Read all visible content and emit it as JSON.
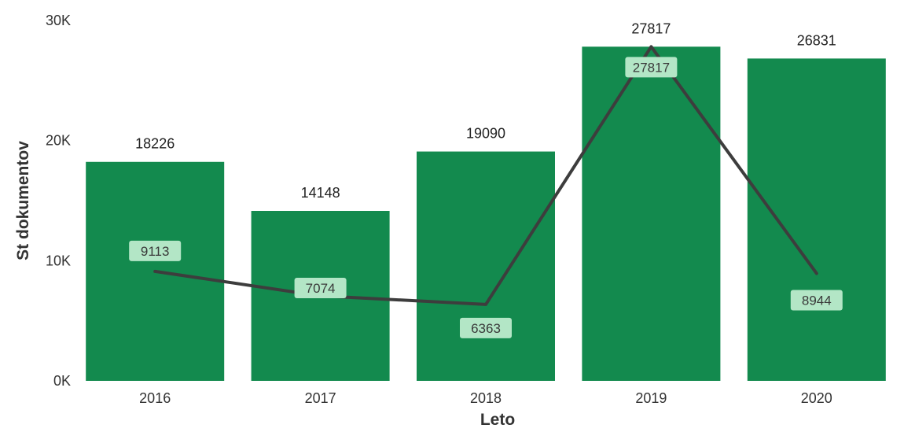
{
  "chart_data": {
    "type": "bar",
    "categories": [
      "2016",
      "2017",
      "2018",
      "2019",
      "2020"
    ],
    "series": [
      {
        "type": "bar",
        "values": [
          18226,
          14148,
          19090,
          27817,
          26831
        ],
        "color": "#138a4e"
      },
      {
        "type": "line",
        "values": [
          9113,
          7074,
          6363,
          27817,
          8944
        ],
        "color": "#3d3d3d"
      }
    ],
    "y_ticks": [
      "0K",
      "10K",
      "20K",
      "30K"
    ],
    "ylim": [
      0,
      30000
    ],
    "xlabel": "Leto",
    "ylabel": "St dokumentov",
    "label_box_color": "#b3e6c6",
    "grid": false,
    "legend": "none"
  }
}
